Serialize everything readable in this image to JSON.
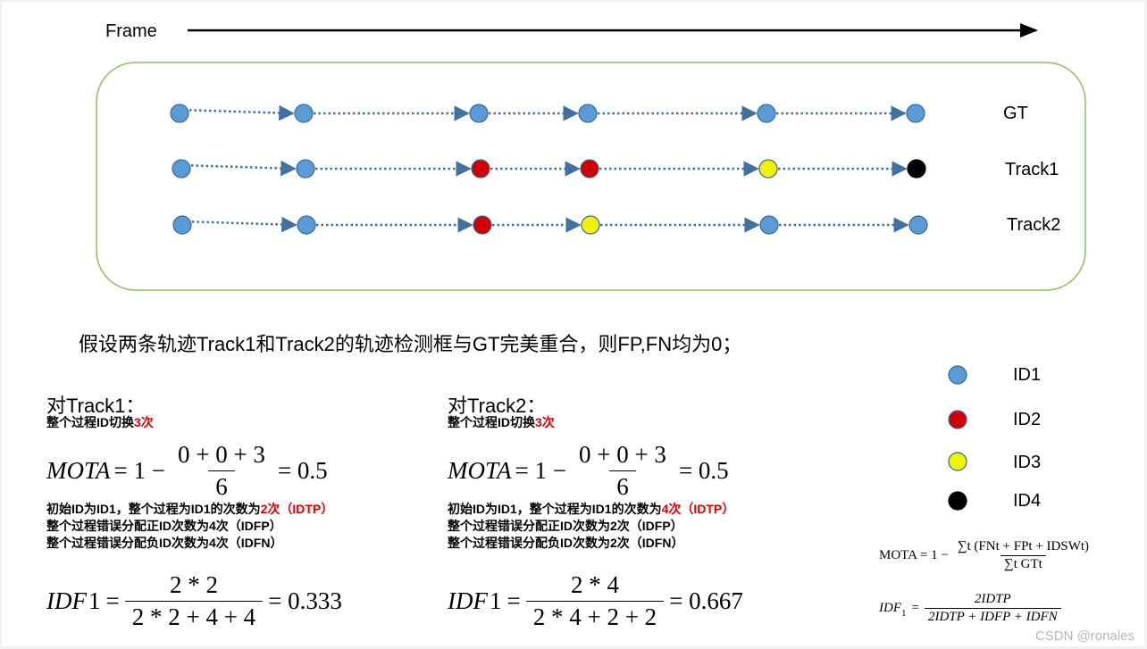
{
  "header": {
    "frame_label": "Frame"
  },
  "rows": [
    {
      "label": "GT",
      "colors": [
        "blue",
        "blue",
        "blue",
        "blue",
        "blue",
        "blue"
      ]
    },
    {
      "label": "Track1",
      "colors": [
        "blue",
        "blue",
        "red",
        "red",
        "yellow",
        "black"
      ]
    },
    {
      "label": "Track2",
      "colors": [
        "blue",
        "blue",
        "red",
        "yellow",
        "blue",
        "blue"
      ]
    }
  ],
  "legend": [
    {
      "label": "ID1",
      "color": "blue"
    },
    {
      "label": "ID2",
      "color": "red"
    },
    {
      "label": "ID3",
      "color": "yellow"
    },
    {
      "label": "ID4",
      "color": "black"
    }
  ],
  "colors": {
    "blue": "#5b9bd5",
    "red": "#d00000",
    "yellow": "#f2f200",
    "black": "#000000",
    "box_border": "#8cc060",
    "arrow": "#41729f"
  },
  "assumption": "假设两条轨迹Track1和Track2的轨迹检测框与GT完美重合，则FP,FN均为0；",
  "track1": {
    "title": "对Track1：",
    "switch_prefix": "整个过程ID切换",
    "switch_count": "3次",
    "mota_lhs": "MOTA",
    "mota_pre": "= 1 −",
    "mota_num": "0 + 0 + 3",
    "mota_den": "6",
    "mota_result": "= 0.5",
    "idtp_prefix": "初始ID为ID1，整个过程为ID1的次数为",
    "idtp_value": "2次（IDTP）",
    "idfp_line": "整个过程错误分配正ID次数为4次（IDFP）",
    "idfn_line": "整个过程错误分配负ID次数为4次（IDFN）",
    "idf_lhs": "IDF",
    "idf_lhs_sub": "1",
    "idf_eq": "=",
    "idf_num": "2 * 2",
    "idf_den": "2 * 2 + 4 + 4",
    "idf_result": "= 0.333"
  },
  "track2": {
    "title": "对Track2：",
    "switch_prefix": "整个过程ID切换",
    "switch_count": "3次",
    "mota_lhs": "MOTA",
    "mota_pre": "= 1 −",
    "mota_num": "0 + 0 + 3",
    "mota_den": "6",
    "mota_result": "= 0.5",
    "idtp_prefix": "初始ID为ID1，整个过程为ID1的次数为",
    "idtp_value": "4次（IDTP）",
    "idfp_line": "整个过程错误分配正ID次数为2次（IDFP）",
    "idfn_line": "整个过程错误分配负ID次数为2次（IDFN）",
    "idf_lhs": "IDF",
    "idf_lhs_sub": "1",
    "idf_eq": "=",
    "idf_num": "2 * 4",
    "idf_den": "2 * 4 + 2 + 2",
    "idf_result": "= 0.667"
  },
  "formulas": {
    "mota_lhs": "MOTA = 1 −",
    "mota_num": "∑t (FNt + FPt + IDSWt)",
    "mota_den": "∑t GTt",
    "idf_lhs": "IDF",
    "idf_sub": "1",
    "idf_eq": "=",
    "idf_num": "2IDTP",
    "idf_den": "2IDTP + IDFP + IDFN"
  },
  "watermark": "CSDN @ronales"
}
